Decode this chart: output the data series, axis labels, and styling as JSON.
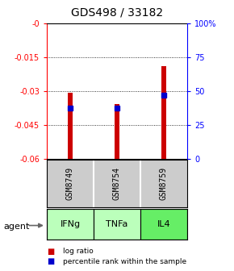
{
  "title": "GDS498 / 33182",
  "samples": [
    "GSM8749",
    "GSM8754",
    "GSM8759"
  ],
  "agents": [
    "IFNg",
    "TNFa",
    "IL4"
  ],
  "log_ratios": [
    -0.031,
    -0.036,
    -0.019
  ],
  "percentile_ranks": [
    37,
    37,
    47
  ],
  "ylim_left": [
    -0.06,
    0.0
  ],
  "ylim_right": [
    0,
    100
  ],
  "yticks_left": [
    0.0,
    -0.015,
    -0.03,
    -0.045,
    -0.06
  ],
  "ytick_labels_left": [
    "-0",
    "-0.015",
    "-0.03",
    "-0.045",
    "-0.06"
  ],
  "yticks_right": [
    100,
    75,
    50,
    25,
    0
  ],
  "ytick_labels_right": [
    "100%",
    "75",
    "50",
    "25",
    "0"
  ],
  "bar_color": "#cc0000",
  "dot_color": "#0000cc",
  "agent_colors": [
    "#bbffbb",
    "#bbffbb",
    "#66ee66"
  ],
  "sample_bg_color": "#cccccc",
  "bar_width": 0.12,
  "legend_log_ratio": "log ratio",
  "legend_percentile": "percentile rank within the sample"
}
